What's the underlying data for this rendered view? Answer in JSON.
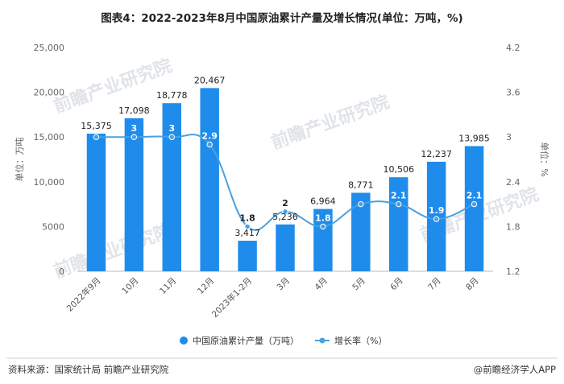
{
  "title": "图表4：2022-2023年8月中国原油累计产量及增长情况(单位：万吨，%)",
  "source": "资料来源：国家统计局 前瞻产业研究院",
  "brand": "@前瞻经济学人APP",
  "watermark": "前瞻产业研究院",
  "colors": {
    "bar": "#1f8ceb",
    "line": "#4aa0e0",
    "label_on_bar": "#ffffff"
  },
  "chart_data": {
    "type": "bar",
    "title": "图表4：2022-2023年8月中国原油累计产量及增长情况(单位：万吨，%)",
    "categories": [
      "2022年9月",
      "10月",
      "11月",
      "12月",
      "2023年1-2月",
      "3月",
      "4月",
      "5月",
      "6月",
      "7月",
      "8月"
    ],
    "series": [
      {
        "name": "中国原油累计产量（万吨）",
        "type": "bar",
        "axis": "left",
        "values": [
          15375,
          17098,
          18778,
          20467,
          3417,
          5236,
          6964,
          8771,
          10506,
          12237,
          13985
        ],
        "labels": [
          "15,375",
          "17,098",
          "18,778",
          "20,467",
          "3,417",
          "5,236",
          "6,964",
          "8,771",
          "10,506",
          "12,237",
          "13,985"
        ]
      },
      {
        "name": "增长率（%）",
        "type": "line",
        "axis": "right",
        "values": [
          3,
          3,
          3,
          2.9,
          1.8,
          2,
          1.8,
          2.1,
          2.1,
          1.9,
          2.1
        ],
        "labels": [
          "",
          "3",
          "3",
          "2.9",
          "1.8",
          "2",
          "1.8",
          "",
          "2.1",
          "1.9",
          "2.1"
        ]
      }
    ],
    "y_left": {
      "label": "单位：万吨",
      "ylim": [
        0,
        25000
      ],
      "ticks": [
        "0",
        "5000",
        "10,000",
        "15,000",
        "20,000",
        "25,000"
      ]
    },
    "y_right": {
      "label": "单位：%",
      "ylim": [
        1.2,
        4.2
      ],
      "ticks": [
        "1.2",
        "1.8",
        "2.4",
        "3",
        "3.6",
        "4.2"
      ]
    },
    "grid": false,
    "legend": "bottom"
  }
}
